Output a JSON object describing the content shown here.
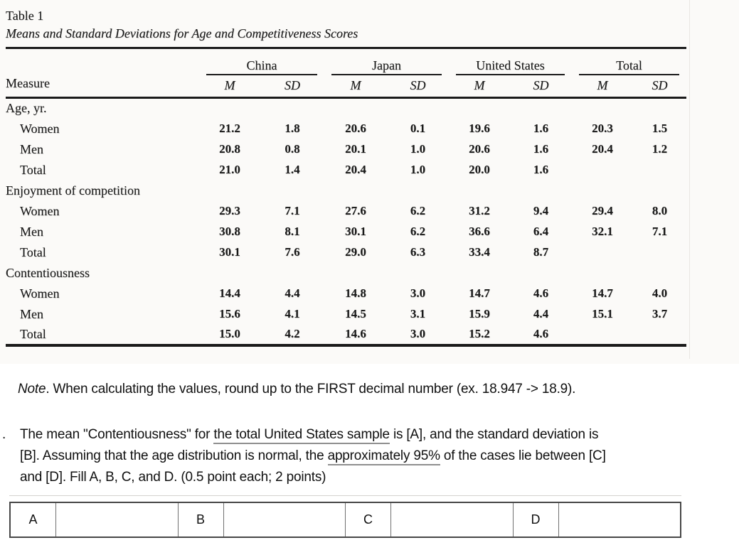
{
  "colors": {
    "ink": "#191919",
    "scan_bg": "#fbfaf8",
    "underline": "#8f8f8f",
    "answer_border": "#474747"
  },
  "table": {
    "label": "Table 1",
    "title": "Means and Standard Deviations for Age and Competitiveness Scores",
    "measure_header": "Measure",
    "group_headers": [
      "China",
      "Japan",
      "United States",
      "Total"
    ],
    "sub_headers": [
      "M",
      "SD"
    ],
    "sections": [
      {
        "name": "Age, yr.",
        "rows": [
          {
            "label": "Women",
            "values": [
              "21.2",
              "1.8",
              "20.6",
              "0.1",
              "19.6",
              "1.6",
              "20.3",
              "1.5"
            ]
          },
          {
            "label": "Men",
            "values": [
              "20.8",
              "0.8",
              "20.1",
              "1.0",
              "20.6",
              "1.6",
              "20.4",
              "1.2"
            ]
          },
          {
            "label": "Total",
            "values": [
              "21.0",
              "1.4",
              "20.4",
              "1.0",
              "20.0",
              "1.6",
              "",
              ""
            ]
          }
        ]
      },
      {
        "name": "Enjoyment of competition",
        "rows": [
          {
            "label": "Women",
            "values": [
              "29.3",
              "7.1",
              "27.6",
              "6.2",
              "31.2",
              "9.4",
              "29.4",
              "8.0"
            ]
          },
          {
            "label": "Men",
            "values": [
              "30.8",
              "8.1",
              "30.1",
              "6.2",
              "36.6",
              "6.4",
              "32.1",
              "7.1"
            ]
          },
          {
            "label": "Total",
            "values": [
              "30.1",
              "7.6",
              "29.0",
              "6.3",
              "33.4",
              "8.7",
              "",
              ""
            ]
          }
        ]
      },
      {
        "name": "Contentiousness",
        "rows": [
          {
            "label": "Women",
            "values": [
              "14.4",
              "4.4",
              "14.8",
              "3.0",
              "14.7",
              "4.6",
              "14.7",
              "4.0"
            ]
          },
          {
            "label": "Men",
            "values": [
              "15.6",
              "4.1",
              "14.5",
              "3.1",
              "15.9",
              "4.4",
              "15.1",
              "3.7"
            ]
          },
          {
            "label": "Total",
            "values": [
              "15.0",
              "4.2",
              "14.6",
              "3.0",
              "15.2",
              "4.6",
              "",
              ""
            ]
          }
        ]
      }
    ]
  },
  "note": {
    "lead": "Note",
    "body": ". When calculating the values, round up to the FIRST decimal number (ex. 18.947 -> 18.9)."
  },
  "question": {
    "bullet": ".",
    "parts": [
      {
        "text": "The mean \"Contentiousness\" for "
      },
      {
        "text": "the total United States sample",
        "underline": true
      },
      {
        "text": " is [A], and the standard deviation is"
      },
      {
        "break": true
      },
      {
        "text": "[B]. Assuming that the age distribution is normal, the "
      },
      {
        "text": "approximately 95%",
        "underline": true
      },
      {
        "text": " of the cases lie between [C]"
      },
      {
        "break": true
      },
      {
        "text": "and [D]. Fill A, B, C, and D. (0.5 point each; 2 points)"
      }
    ]
  },
  "answer_table": {
    "cells": [
      {
        "label": "A",
        "value": ""
      },
      {
        "label": "B",
        "value": ""
      },
      {
        "label": "C",
        "value": ""
      },
      {
        "label": "D",
        "value": ""
      }
    ]
  }
}
